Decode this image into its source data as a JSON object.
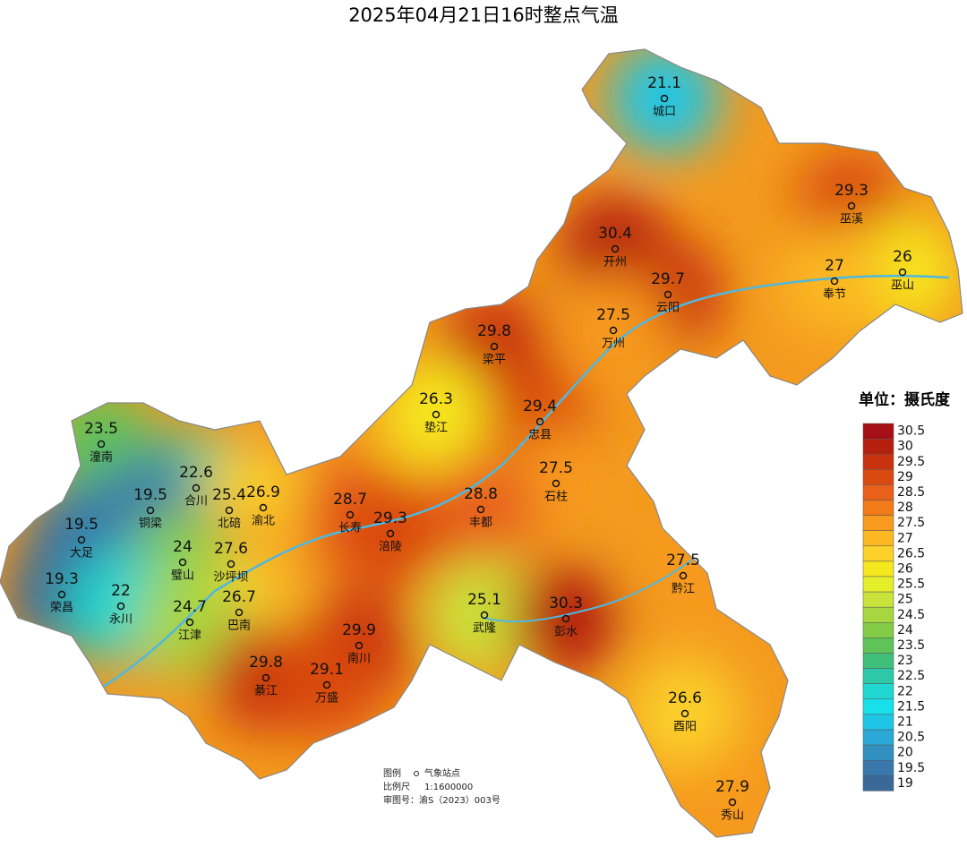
{
  "title": "2025年04月21日16时整点气温",
  "stations": [
    {
      "name": "城口",
      "value": 21.1
    },
    {
      "name": "巫溪",
      "value": 29.3
    },
    {
      "name": "开州",
      "value": 30.4
    },
    {
      "name": "巫山",
      "value": 26
    },
    {
      "name": "奉节",
      "value": 27
    },
    {
      "name": "云阳",
      "value": 29.7
    },
    {
      "name": "万州",
      "value": 27.5
    },
    {
      "name": "梁平",
      "value": 29.8
    },
    {
      "name": "垫江",
      "value": 26.3
    },
    {
      "name": "忠县",
      "value": 29.4
    },
    {
      "name": "潼南",
      "value": 23.5
    },
    {
      "name": "石柱",
      "value": 27.5
    },
    {
      "name": "合川",
      "value": 22.6
    },
    {
      "name": "北碚",
      "value": 25.4
    },
    {
      "name": "丰都",
      "value": 28.8
    },
    {
      "name": "铜梁",
      "value": 19.5
    },
    {
      "name": "渝北",
      "value": 26.9
    },
    {
      "name": "长寿",
      "value": 28.7
    },
    {
      "name": "涪陵",
      "value": 29.3
    },
    {
      "name": "大足",
      "value": 19.5
    },
    {
      "name": "沙坪坝",
      "value": 27.6
    },
    {
      "name": "璧山",
      "value": 24
    },
    {
      "name": "黔江",
      "value": 27.5
    },
    {
      "name": "荣昌",
      "value": 19.3
    },
    {
      "name": "永川",
      "value": 22
    },
    {
      "name": "巴南",
      "value": 26.7
    },
    {
      "name": "武隆",
      "value": 25.1
    },
    {
      "name": "彭水",
      "value": 30.3
    },
    {
      "name": "江津",
      "value": 24.7
    },
    {
      "name": "南川",
      "value": 29.9
    },
    {
      "name": "綦江",
      "value": 29.8
    },
    {
      "name": "万盛",
      "value": 29.1
    },
    {
      "name": "酉阳",
      "value": 26.6
    },
    {
      "name": "秀山",
      "value": 27.9
    }
  ],
  "legend": {
    "title": "单位：摄氏度",
    "items": [
      {
        "label": 30.5,
        "color": "#a50f15"
      },
      {
        "label": 30,
        "color": "#b5200e"
      },
      {
        "label": 29.5,
        "color": "#c8320f"
      },
      {
        "label": 29,
        "color": "#d94a10"
      },
      {
        "label": 28.5,
        "color": "#e8601a"
      },
      {
        "label": 28,
        "color": "#f27a18"
      },
      {
        "label": 27.5,
        "color": "#f79a1e"
      },
      {
        "label": 27,
        "color": "#fbb822"
      },
      {
        "label": 26.5,
        "color": "#fbd12a"
      },
      {
        "label": 26,
        "color": "#f6e81f"
      },
      {
        "label": 25.5,
        "color": "#e4ef2a"
      },
      {
        "label": 25,
        "color": "#c9e33a"
      },
      {
        "label": 24.5,
        "color": "#a8d640"
      },
      {
        "label": 24,
        "color": "#84cc48"
      },
      {
        "label": 23.5,
        "color": "#5fc35a"
      },
      {
        "label": 23,
        "color": "#3fbf7a"
      },
      {
        "label": 22.5,
        "color": "#2cc8a8"
      },
      {
        "label": 22,
        "color": "#1fd6d0"
      },
      {
        "label": 21.5,
        "color": "#17e0ea"
      },
      {
        "label": 21,
        "color": "#1ec6e6"
      },
      {
        "label": 20.5,
        "color": "#2aa9d6"
      },
      {
        "label": 20,
        "color": "#3290c0"
      },
      {
        "label": 19.5,
        "color": "#3878ac"
      },
      {
        "label": 19,
        "color": "#3a6898"
      }
    ]
  },
  "notes": {
    "legend": "图例",
    "legend_symbol_label": "气象站点",
    "scale_label": "比例尺",
    "scale": "1:1600000",
    "approval": "审图号：渝S（2023）003号"
  }
}
